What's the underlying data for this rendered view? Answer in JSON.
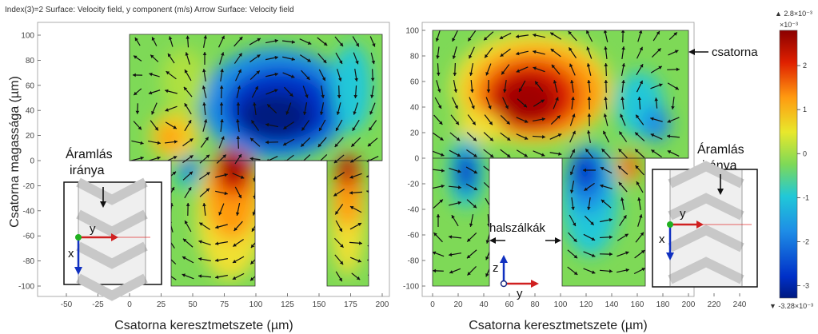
{
  "header_text": "Index(3)=2   Surface: Velocity field, y component (m/s)  Arrow Surface: Velocity field",
  "colors": {
    "red": "#b00000",
    "orange": "#ff7a00",
    "yellow": "#f0e030",
    "green": "#7ed957",
    "cyan": "#20c8d8",
    "blue": "#0030c8",
    "navy": "#001a80"
  },
  "chart_data": [
    {
      "type": "heatmap",
      "panel": "left",
      "ylabel": "Csatorna magassága (µm)",
      "xlabel": "Csatorna keresztmetszete (µm)",
      "xlim": [
        -60,
        200
      ],
      "ylim": [
        -105,
        105
      ],
      "xticks": [
        "-50",
        "-25",
        "0",
        "25",
        "50",
        "75",
        "100",
        "125",
        "150",
        "175",
        "200"
      ],
      "xtick_values": [
        -50,
        -25,
        0,
        25,
        50,
        75,
        100,
        125,
        150,
        175,
        200
      ],
      "yticks": [
        "100",
        "80",
        "60",
        "40",
        "20",
        "0",
        "-20",
        "-40",
        "-60",
        "-80",
        "-100"
      ],
      "ytick_values": [
        100,
        80,
        60,
        40,
        20,
        0,
        -20,
        -40,
        -60,
        -80,
        -100
      ],
      "annotations": [
        "Áramlás",
        "iránya"
      ],
      "inset_axes": [
        "y",
        "x"
      ]
    },
    {
      "type": "heatmap",
      "panel": "right",
      "xlabel": "Csatorna keresztmetszete (µm)",
      "xlim": [
        -5,
        245
      ],
      "ylim": [
        -105,
        105
      ],
      "xticks": [
        "0",
        "20",
        "40",
        "60",
        "80",
        "100",
        "120",
        "140",
        "160",
        "180",
        "200",
        "220",
        "240"
      ],
      "xtick_values": [
        0,
        20,
        40,
        60,
        80,
        100,
        120,
        140,
        160,
        180,
        200,
        220,
        240
      ],
      "yticks": [
        "100",
        "80",
        "60",
        "40",
        "20",
        "0",
        "-20",
        "-40",
        "-60",
        "-80",
        "-100"
      ],
      "ytick_values": [
        100,
        80,
        60,
        40,
        20,
        0,
        -20,
        -40,
        -60,
        -80,
        -100
      ],
      "annotations": [
        "csatorna",
        "halszálkák",
        "Áramlás",
        "iránya"
      ],
      "triad_axes": [
        "z",
        "y"
      ],
      "inset_axes": [
        "y",
        "x"
      ]
    }
  ],
  "colorbar": {
    "max_label": "▲ 2.8×10⁻³",
    "unit": "×10⁻³",
    "ticks": [
      "2",
      "1",
      "0",
      "-1",
      "-2",
      "-3"
    ],
    "tick_values": [
      2,
      1,
      0,
      -1,
      -2,
      -3
    ],
    "min_label": "▼ -3.28×10⁻³",
    "range": [
      -3.28,
      2.8
    ]
  }
}
